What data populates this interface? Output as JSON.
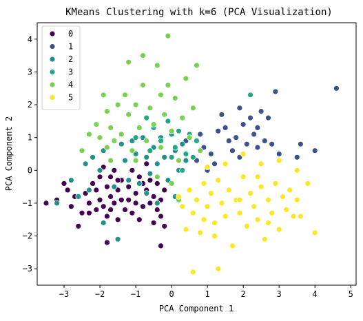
{
  "chart_data": {
    "type": "scatter",
    "title": "KMeans Clustering with k=6 (PCA Visualization)",
    "xlabel": "PCA Component 1",
    "ylabel": "PCA Component 2",
    "xlim": [
      -3.75,
      5.15
    ],
    "ylim": [
      -3.5,
      4.5
    ],
    "xticks": [
      -3,
      -2,
      -1,
      0,
      1,
      2,
      3,
      4,
      5
    ],
    "yticks": [
      -3,
      -2,
      -1,
      0,
      1,
      2,
      3,
      4
    ],
    "legend_position": "upper-left",
    "grid": false,
    "series": [
      {
        "name": "0",
        "color": "#440154",
        "points": [
          [
            -3.5,
            -1.0
          ],
          [
            -3.2,
            -0.9
          ],
          [
            -3.0,
            -0.4
          ],
          [
            -2.9,
            -0.6
          ],
          [
            -2.8,
            -1.1
          ],
          [
            -2.7,
            -0.8
          ],
          [
            -2.6,
            -1.7
          ],
          [
            -2.5,
            -1.3
          ],
          [
            -2.4,
            -0.7
          ],
          [
            -2.3,
            -1.0
          ],
          [
            -2.2,
            -0.4
          ],
          [
            -2.1,
            -1.2
          ],
          [
            -2.1,
            -0.6
          ],
          [
            -2.0,
            -0.9
          ],
          [
            -1.9,
            -1.1
          ],
          [
            -1.9,
            0.1
          ],
          [
            -1.8,
            -0.5
          ],
          [
            -1.8,
            -1.4
          ],
          [
            -1.7,
            -0.2
          ],
          [
            -1.7,
            -0.8
          ],
          [
            -1.6,
            -1.0
          ],
          [
            -1.6,
            0.0
          ],
          [
            -1.5,
            -0.6
          ],
          [
            -1.5,
            -1.5
          ],
          [
            -1.4,
            -0.3
          ],
          [
            -1.4,
            -0.9
          ],
          [
            -1.3,
            -1.2
          ],
          [
            -1.3,
            0.3
          ],
          [
            -1.2,
            -0.5
          ],
          [
            -1.2,
            -0.9
          ],
          [
            -1.1,
            -1.3
          ],
          [
            -1.1,
            0.0
          ],
          [
            -1.0,
            -0.7
          ],
          [
            -1.0,
            -1.0
          ],
          [
            -0.9,
            -0.2
          ],
          [
            -0.9,
            -1.5
          ],
          [
            -0.8,
            -0.4
          ],
          [
            -0.8,
            -1.1
          ],
          [
            -0.7,
            -0.6
          ],
          [
            -0.7,
            0.2
          ],
          [
            -0.6,
            -1.0
          ],
          [
            -0.6,
            -0.3
          ],
          [
            -0.5,
            -1.6
          ],
          [
            -0.5,
            -0.8
          ],
          [
            -0.4,
            -0.4
          ],
          [
            -0.4,
            -1.2
          ],
          [
            -0.3,
            -0.9
          ],
          [
            -0.3,
            -1.4
          ],
          [
            -0.3,
            -2.3
          ],
          [
            -0.2,
            -1.7
          ],
          [
            -0.2,
            -0.6
          ],
          [
            -1.8,
            -2.2
          ],
          [
            -2.3,
            -1.3
          ],
          [
            -2.0,
            -0.2
          ],
          [
            -1.5,
            -0.3
          ],
          [
            -1.7,
            -1.2
          ]
        ]
      },
      {
        "name": "1",
        "color": "#3b528b",
        "points": [
          [
            0.4,
            0.9
          ],
          [
            0.7,
            0.3
          ],
          [
            0.9,
            0.7
          ],
          [
            1.0,
            0.0
          ],
          [
            1.1,
            0.5
          ],
          [
            1.2,
            0.2
          ],
          [
            1.3,
            1.2
          ],
          [
            1.4,
            1.7
          ],
          [
            1.5,
            1.3
          ],
          [
            1.6,
            0.9
          ],
          [
            1.7,
            0.6
          ],
          [
            1.8,
            1.0
          ],
          [
            1.9,
            0.4
          ],
          [
            2.0,
            1.4
          ],
          [
            2.1,
            0.8
          ],
          [
            2.2,
            1.6
          ],
          [
            2.2,
            2.3
          ],
          [
            2.3,
            1.1
          ],
          [
            2.4,
            0.7
          ],
          [
            2.5,
            1.8
          ],
          [
            2.6,
            0.9
          ],
          [
            2.7,
            1.6
          ],
          [
            2.8,
            0.8
          ],
          [
            2.9,
            2.4
          ],
          [
            3.0,
            0.5
          ],
          [
            3.5,
            0.4
          ],
          [
            3.6,
            0.8
          ],
          [
            4.0,
            0.6
          ],
          [
            4.6,
            2.5
          ],
          [
            0.8,
            1.1
          ],
          [
            1.9,
            1.9
          ],
          [
            2.4,
            1.3
          ]
        ]
      },
      {
        "name": "2",
        "color": "#21918c",
        "points": [
          [
            -3.2,
            -1.0
          ],
          [
            -2.8,
            -0.3
          ],
          [
            -2.4,
            0.2
          ],
          [
            -2.3,
            -0.6
          ],
          [
            -2.2,
            0.4
          ],
          [
            -2.0,
            0.0
          ],
          [
            -1.9,
            0.6
          ],
          [
            -1.7,
            0.3
          ],
          [
            -1.6,
            -0.5
          ],
          [
            -1.4,
            0.8
          ],
          [
            -1.3,
            0.3
          ],
          [
            -1.2,
            -0.3
          ],
          [
            -1.1,
            0.9
          ],
          [
            -1.0,
            0.5
          ],
          [
            -0.9,
            -0.4
          ],
          [
            -0.8,
            1.0
          ],
          [
            -0.7,
            0.4
          ],
          [
            -0.6,
            -0.1
          ],
          [
            -0.5,
            0.7
          ],
          [
            -0.4,
            0.2
          ],
          [
            -0.3,
            1.0
          ],
          [
            -0.2,
            0.4
          ],
          [
            -0.1,
            -0.3
          ],
          [
            0.0,
            1.1
          ],
          [
            0.1,
            0.6
          ],
          [
            0.2,
            0.0
          ],
          [
            0.3,
            0.8
          ],
          [
            0.4,
            0.3
          ],
          [
            -1.5,
            -2.1
          ],
          [
            -1.9,
            -1.6
          ],
          [
            -0.4,
            -1.0
          ],
          [
            0.1,
            -0.8
          ],
          [
            -2.6,
            -0.8
          ],
          [
            -0.7,
            -0.7
          ]
        ]
      },
      {
        "name": "3",
        "color": "#22a884",
        "points": [
          [
            -1.0,
            1.0
          ],
          [
            -0.7,
            1.6
          ],
          [
            -0.5,
            1.3
          ],
          [
            -0.3,
            0.9
          ],
          [
            -0.1,
            1.5
          ],
          [
            0.1,
            0.7
          ],
          [
            0.2,
            1.2
          ],
          [
            0.4,
            0.5
          ],
          [
            0.5,
            1.1
          ],
          [
            0.6,
            0.4
          ],
          [
            0.7,
            0.9
          ],
          [
            0.3,
            0.0
          ],
          [
            2.2,
            2.3
          ],
          [
            -0.6,
            0.6
          ],
          [
            0.0,
            0.4
          ]
        ]
      },
      {
        "name": "4",
        "color": "#7ad151",
        "points": [
          [
            -2.1,
            1.4
          ],
          [
            -2.0,
            1.0
          ],
          [
            -1.9,
            2.3
          ],
          [
            -1.8,
            0.7
          ],
          [
            -1.8,
            1.8
          ],
          [
            -1.7,
            1.3
          ],
          [
            -1.6,
            0.9
          ],
          [
            -1.5,
            2.0
          ],
          [
            -1.4,
            1.1
          ],
          [
            -1.3,
            2.3
          ],
          [
            -1.2,
            1.7
          ],
          [
            -1.2,
            3.3
          ],
          [
            -1.1,
            0.6
          ],
          [
            -1.0,
            2.0
          ],
          [
            -0.9,
            1.3
          ],
          [
            -0.8,
            2.6
          ],
          [
            -0.7,
            0.9
          ],
          [
            -0.6,
            1.9
          ],
          [
            -0.5,
            1.4
          ],
          [
            -0.4,
            3.2
          ],
          [
            -0.3,
            2.3
          ],
          [
            -0.3,
            0.7
          ],
          [
            -0.2,
            1.7
          ],
          [
            -0.1,
            2.6
          ],
          [
            -0.1,
            4.1
          ],
          [
            0.0,
            1.2
          ],
          [
            0.1,
            2.2
          ],
          [
            0.2,
            0.3
          ],
          [
            0.3,
            1.6
          ],
          [
            0.4,
            2.8
          ],
          [
            0.5,
            1.0
          ],
          [
            0.6,
            1.9
          ],
          [
            0.7,
            3.2
          ],
          [
            0.8,
            0.6
          ],
          [
            -2.3,
            1.1
          ],
          [
            -1.0,
            0.3
          ],
          [
            -0.4,
            -0.2
          ],
          [
            0.0,
            -0.4
          ],
          [
            -1.7,
            0.3
          ],
          [
            -2.5,
            0.6
          ],
          [
            -0.8,
            3.5
          ],
          [
            0.2,
            -0.9
          ]
        ]
      },
      {
        "name": "5",
        "color": "#fde725",
        "points": [
          [
            0.2,
            -0.8
          ],
          [
            0.3,
            -1.1
          ],
          [
            0.5,
            -0.6
          ],
          [
            0.6,
            -1.3
          ],
          [
            0.7,
            -0.9
          ],
          [
            0.8,
            -1.9
          ],
          [
            0.9,
            -0.4
          ],
          [
            1.0,
            -1.1
          ],
          [
            1.1,
            -0.7
          ],
          [
            1.2,
            -1.6
          ],
          [
            1.3,
            -0.3
          ],
          [
            1.4,
            -1.0
          ],
          [
            1.5,
            -1.4
          ],
          [
            1.6,
            -0.6
          ],
          [
            1.7,
            -2.3
          ],
          [
            1.8,
            -0.9
          ],
          [
            1.9,
            -1.3
          ],
          [
            2.0,
            -0.2
          ],
          [
            2.1,
            -1.7
          ],
          [
            2.2,
            -0.7
          ],
          [
            2.3,
            -1.1
          ],
          [
            2.4,
            -1.5
          ],
          [
            2.5,
            -0.5
          ],
          [
            2.6,
            -2.1
          ],
          [
            2.7,
            -0.9
          ],
          [
            2.8,
            -1.3
          ],
          [
            2.9,
            -0.4
          ],
          [
            3.0,
            -1.8
          ],
          [
            3.1,
            -0.8
          ],
          [
            3.2,
            -1.2
          ],
          [
            3.3,
            -0.6
          ],
          [
            3.5,
            -0.9
          ],
          [
            3.6,
            -1.4
          ],
          [
            3.8,
            -0.4
          ],
          [
            4.0,
            -1.9
          ],
          [
            0.6,
            -3.1
          ],
          [
            1.3,
            -3.0
          ],
          [
            1.0,
            0.1
          ],
          [
            1.5,
            0.2
          ],
          [
            2.0,
            0.5
          ],
          [
            2.5,
            0.2
          ],
          [
            3.0,
            0.3
          ],
          [
            3.5,
            0.0
          ],
          [
            1.2,
            -2.0
          ],
          [
            2.7,
            -1.6
          ],
          [
            0.9,
            -1.5
          ],
          [
            1.9,
            -0.9
          ],
          [
            2.4,
            -0.2
          ],
          [
            0.4,
            -1.8
          ],
          [
            3.4,
            -1.4
          ]
        ]
      }
    ]
  }
}
